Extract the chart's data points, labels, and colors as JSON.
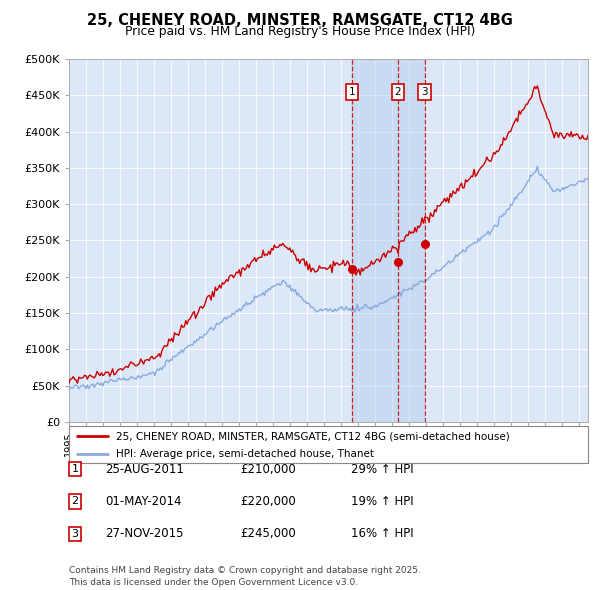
{
  "title": "25, CHENEY ROAD, MINSTER, RAMSGATE, CT12 4BG",
  "subtitle": "Price paid vs. HM Land Registry's House Price Index (HPI)",
  "legend_line1": "25, CHENEY ROAD, MINSTER, RAMSGATE, CT12 4BG (semi-detached house)",
  "legend_line2": "HPI: Average price, semi-detached house, Thanet",
  "ylim": [
    0,
    500000
  ],
  "yticks": [
    0,
    50000,
    100000,
    150000,
    200000,
    250000,
    300000,
    350000,
    400000,
    450000,
    500000
  ],
  "ytick_labels": [
    "£0",
    "£50K",
    "£100K",
    "£150K",
    "£200K",
    "£250K",
    "£300K",
    "£350K",
    "£400K",
    "£450K",
    "£500K"
  ],
  "price_color": "#cc0000",
  "hpi_color": "#88aadd",
  "vline_color": "#cc0000",
  "plot_bg_color": "#dce8f8",
  "shade_color": "#c0d4ef",
  "transactions": [
    {
      "date": 2011.646,
      "price": 210000,
      "label": "1"
    },
    {
      "date": 2014.329,
      "price": 220000,
      "label": "2"
    },
    {
      "date": 2015.904,
      "price": 245000,
      "label": "3"
    }
  ],
  "transaction_table": [
    {
      "num": "1",
      "date": "25-AUG-2011",
      "price": "£210,000",
      "hpi": "29% ↑ HPI"
    },
    {
      "num": "2",
      "date": "01-MAY-2014",
      "price": "£220,000",
      "hpi": "19% ↑ HPI"
    },
    {
      "num": "3",
      "date": "27-NOV-2015",
      "price": "£245,000",
      "hpi": "16% ↑ HPI"
    }
  ],
  "footer": "Contains HM Land Registry data © Crown copyright and database right 2025.\nThis data is licensed under the Open Government Licence v3.0.",
  "xmin": 1995,
  "xmax": 2025.5
}
